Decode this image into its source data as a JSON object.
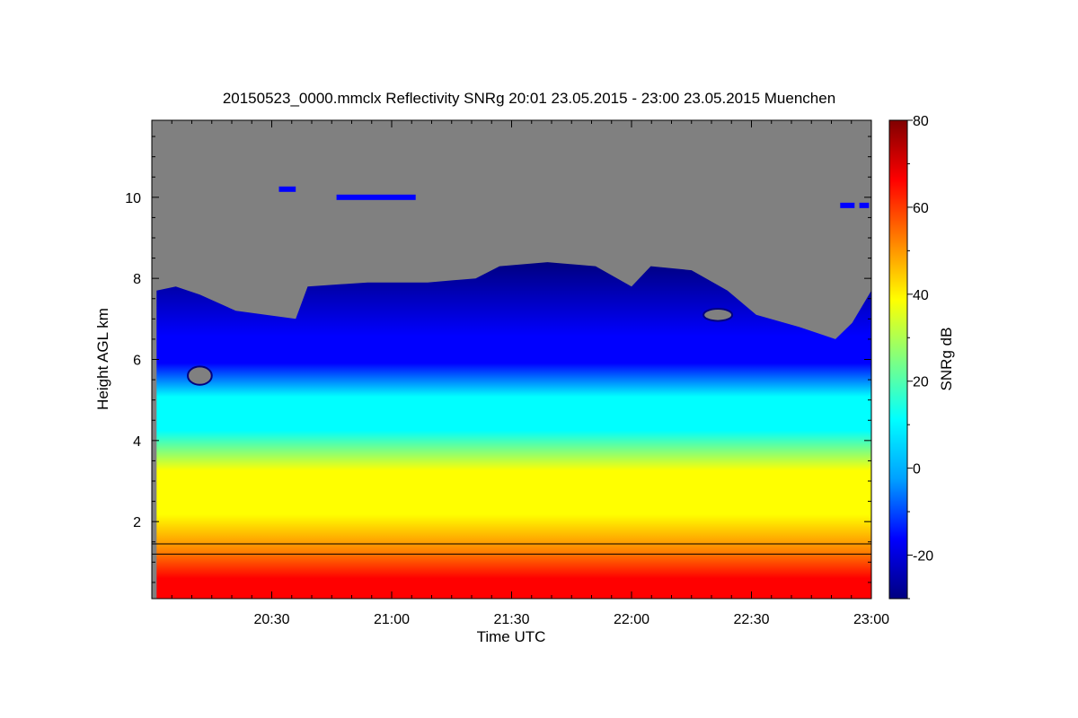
{
  "chart_data": {
    "type": "heatmap",
    "title": "20150523_0000.mmclx Reflectivity SNRg   20:01 23.05.2015 - 23:00 23.05.2015 Muenchen",
    "xlabel": "Time UTC",
    "ylabel": "Height AGL km",
    "colorbar_label": "SNRg dB",
    "x_range_hours": [
      20.0,
      23.0
    ],
    "y_range_km": [
      0.1,
      11.9
    ],
    "c_range_db": [
      -30,
      80
    ],
    "x_ticks": [
      {
        "value": 20.5,
        "label": "20:30"
      },
      {
        "value": 21.0,
        "label": "21:00"
      },
      {
        "value": 21.5,
        "label": "21:30"
      },
      {
        "value": 22.0,
        "label": "22:00"
      },
      {
        "value": 22.5,
        "label": "22:30"
      },
      {
        "value": 23.0,
        "label": "23:00"
      }
    ],
    "y_ticks": [
      {
        "value": 2,
        "label": "2"
      },
      {
        "value": 4,
        "label": "4"
      },
      {
        "value": 6,
        "label": "6"
      },
      {
        "value": 8,
        "label": "8"
      },
      {
        "value": 10,
        "label": "10"
      }
    ],
    "c_ticks": [
      {
        "value": -20,
        "label": "-20"
      },
      {
        "value": 0,
        "label": "0"
      },
      {
        "value": 20,
        "label": "20"
      },
      {
        "value": 40,
        "label": "40"
      },
      {
        "value": 60,
        "label": "60"
      },
      {
        "value": 80,
        "label": "80"
      }
    ],
    "colormap": [
      "#000080",
      "#0000ff",
      "#00a0ff",
      "#00ffff",
      "#80ff80",
      "#ffff00",
      "#ff8000",
      "#ff0000",
      "#800000"
    ],
    "no_signal_color": "#808080",
    "cloud_top_km": [
      {
        "t": 20.02,
        "h": 7.7
      },
      {
        "t": 20.1,
        "h": 7.8
      },
      {
        "t": 20.2,
        "h": 7.6
      },
      {
        "t": 20.35,
        "h": 7.2
      },
      {
        "t": 20.6,
        "h": 7.0
      },
      {
        "t": 20.65,
        "h": 7.8
      },
      {
        "t": 20.9,
        "h": 7.9
      },
      {
        "t": 21.15,
        "h": 7.9
      },
      {
        "t": 21.35,
        "h": 8.0
      },
      {
        "t": 21.45,
        "h": 8.3
      },
      {
        "t": 21.65,
        "h": 8.4
      },
      {
        "t": 21.85,
        "h": 8.3
      },
      {
        "t": 22.0,
        "h": 7.8
      },
      {
        "t": 22.08,
        "h": 8.3
      },
      {
        "t": 22.25,
        "h": 8.2
      },
      {
        "t": 22.4,
        "h": 7.7
      },
      {
        "t": 22.52,
        "h": 7.1
      },
      {
        "t": 22.7,
        "h": 6.8
      },
      {
        "t": 22.85,
        "h": 6.5
      },
      {
        "t": 22.92,
        "h": 6.9
      },
      {
        "t": 23.0,
        "h": 7.7
      }
    ],
    "high_cloud_patches": [
      {
        "t0": 20.53,
        "t1": 20.6,
        "h": 10.2
      },
      {
        "t0": 20.77,
        "t1": 21.1,
        "h": 10.0
      },
      {
        "t0": 22.87,
        "t1": 22.93,
        "h": 9.8
      },
      {
        "t0": 22.95,
        "t1": 22.99,
        "h": 9.8
      }
    ],
    "gaps": [
      {
        "t": 20.15,
        "h": 5.6,
        "dt": 0.1,
        "dh": 0.45
      },
      {
        "t": 22.3,
        "h": 7.1,
        "dt": 0.12,
        "dh": 0.3
      }
    ],
    "lines_km": [
      1.45,
      1.2
    ]
  }
}
